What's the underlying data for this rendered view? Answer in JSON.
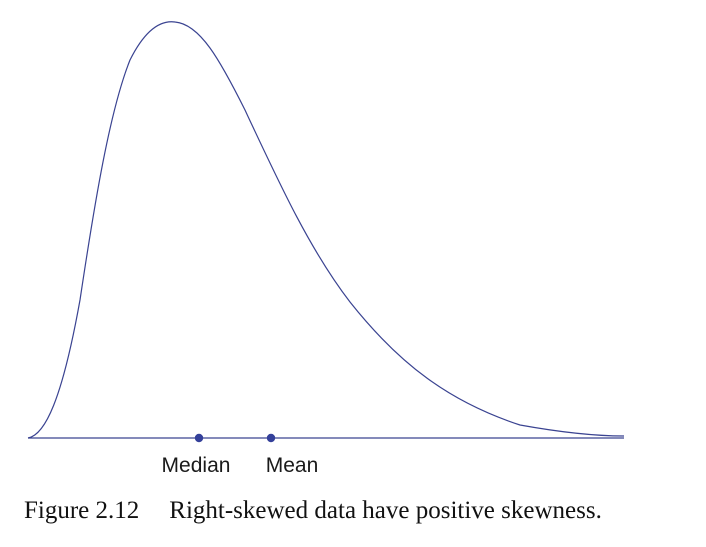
{
  "figure": {
    "caption_number": "Figure 2.12",
    "caption_text": "Right-skewed data have positive skewness.",
    "curve_color": "#3a4391",
    "axis_color": "#3a4391",
    "marker_color": "#34409a"
  },
  "markers": [
    {
      "label": "Median"
    },
    {
      "label": "Mean"
    }
  ]
}
